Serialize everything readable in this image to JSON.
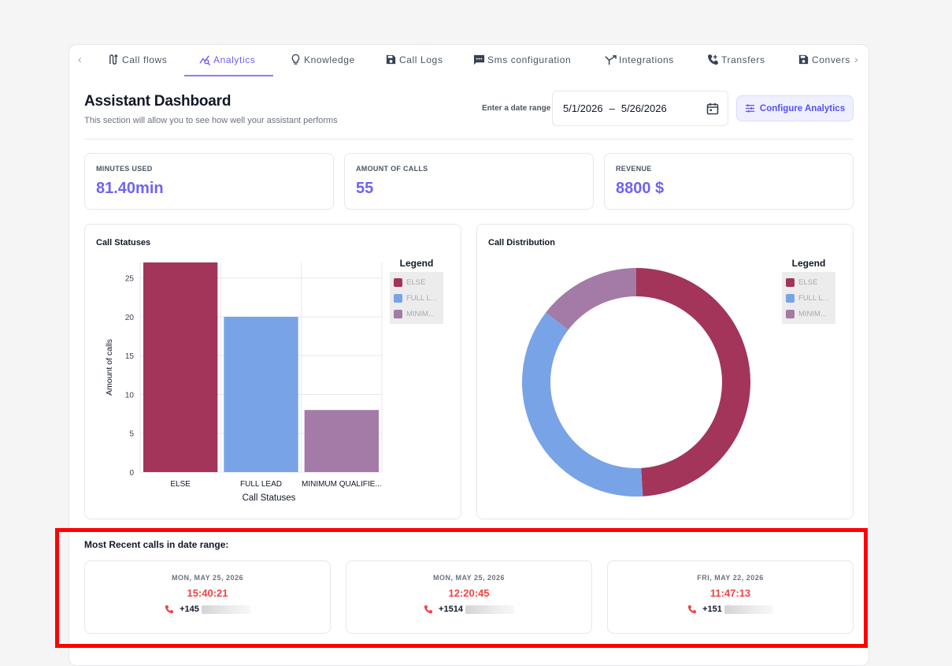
{
  "tabs": [
    {
      "label": "Call flows",
      "icon": "call-flows-icon",
      "active": false
    },
    {
      "label": "Analytics",
      "icon": "analytics-icon",
      "active": true
    },
    {
      "label": "Knowledge",
      "icon": "lightbulb-icon",
      "active": false
    },
    {
      "label": "Call Logs",
      "icon": "save-icon",
      "active": false
    },
    {
      "label": "Sms configuration",
      "icon": "message-icon",
      "active": false
    },
    {
      "label": "Integrations",
      "icon": "merge-icon",
      "active": false
    },
    {
      "label": "Transfers",
      "icon": "phone-forward-icon",
      "active": false
    },
    {
      "label": "Convers",
      "icon": "save-icon",
      "active": false
    }
  ],
  "header": {
    "title": "Assistant Dashboard",
    "subtitle": "This section will allow you to see how well your assistant performs",
    "date_label": "Enter a date range",
    "date_start": "5/1/2026",
    "date_separator": "–",
    "date_end": "5/26/2026",
    "configure_label": "Configure Analytics"
  },
  "stats": [
    {
      "label": "MINUTES USED",
      "value": "81.40min"
    },
    {
      "label": "AMOUNT OF CALLS",
      "value": "55"
    },
    {
      "label": "REVENUE",
      "value": "8800 $"
    }
  ],
  "bar_card": {
    "title": "Call Statuses",
    "legend_title": "Legend"
  },
  "donut_card": {
    "title": "Call Distribution",
    "legend_title": "Legend"
  },
  "chart_data": [
    {
      "type": "bar",
      "title": "Call Statuses",
      "categories": [
        "ELSE",
        "FULL LEAD",
        "MINIMUM QUALIFIE..."
      ],
      "values": [
        27,
        20,
        8
      ],
      "colors": [
        "#a3355a",
        "#78a3e6",
        "#a47aa7"
      ],
      "xlabel": "Call Statuses",
      "ylabel": "Amount of calls",
      "yticks": [
        0,
        5,
        10,
        15,
        20,
        25
      ],
      "ylim": [
        0,
        27
      ],
      "grid": true,
      "legend": [
        "ELSE",
        "FULL L...",
        "MINIM..."
      ],
      "legend_position": "right"
    },
    {
      "type": "pie",
      "title": "Call Distribution",
      "categories": [
        "ELSE",
        "FULL LEAD",
        "MINIMUM QUALIFIED"
      ],
      "values": [
        27,
        20,
        8
      ],
      "colors": [
        "#a3355a",
        "#78a3e6",
        "#a47aa7"
      ],
      "donut": true,
      "legend": [
        "ELSE",
        "FULL L...",
        "MINIM..."
      ],
      "legend_position": "right"
    }
  ],
  "recent": {
    "title": "Most Recent calls in date range:",
    "calls": [
      {
        "date": "MON, MAY 25, 2026",
        "time": "15:40:21",
        "phone": "+145"
      },
      {
        "date": "MON, MAY 25, 2026",
        "time": "12:20:45",
        "phone": "+1514"
      },
      {
        "date": "FRI, MAY 22, 2026",
        "time": "11:47:13",
        "phone": "+151"
      }
    ]
  }
}
